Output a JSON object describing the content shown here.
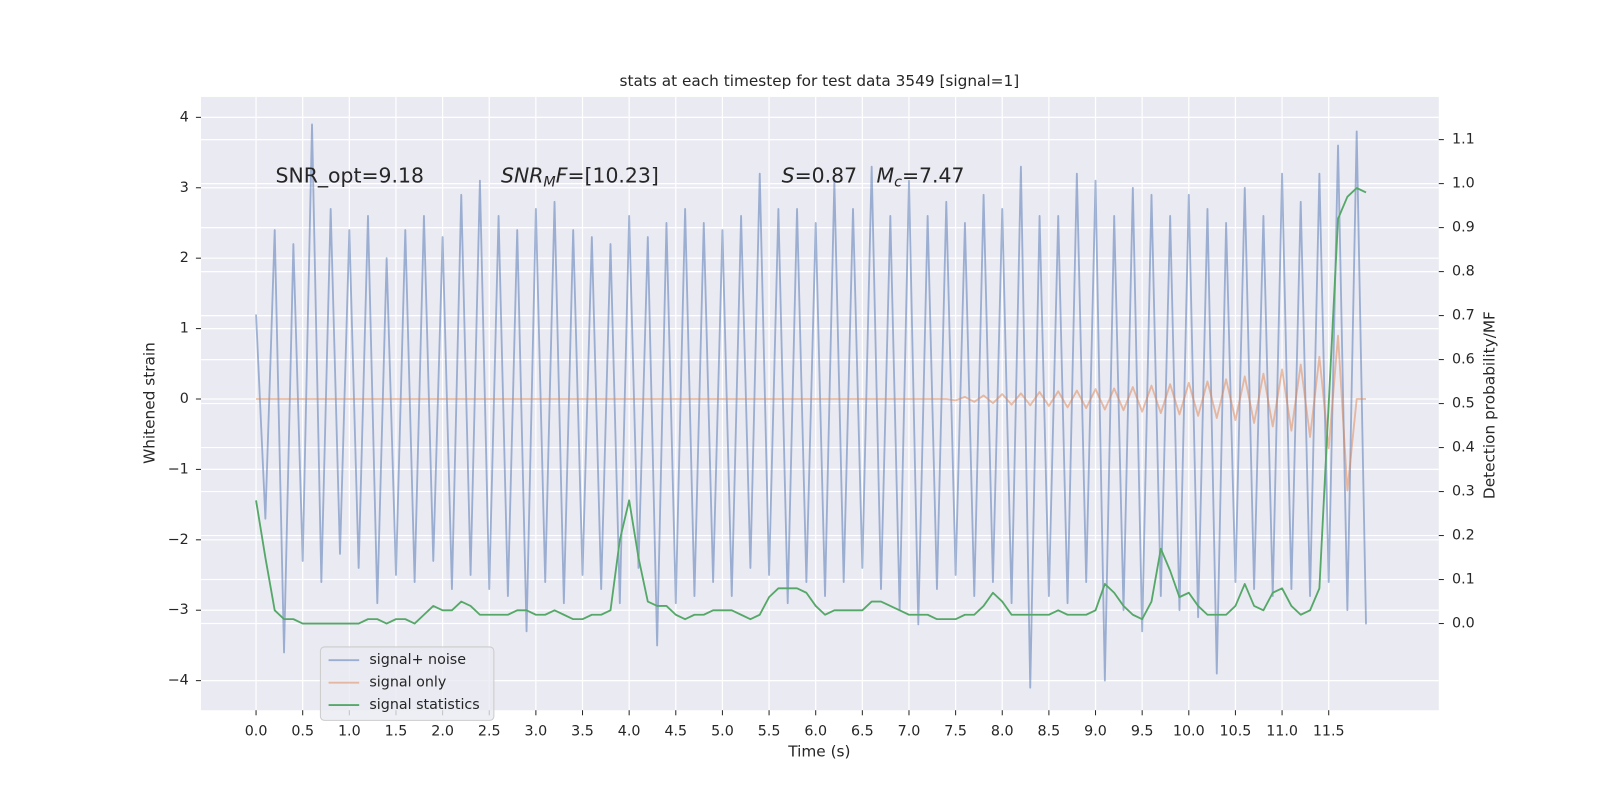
{
  "chart_data": {
    "type": "line",
    "title": "stats at each timestep for test data 3549 [signal=1]",
    "xlabel": "Time (s)",
    "ylabel": "Whitened strain",
    "y2label": "Detection probability/MF",
    "annotations": [
      [
        {
          "t": "SNR_opt=9.18"
        }
      ],
      [
        {
          "t": "SNR",
          "i": true
        },
        {
          "t": "M",
          "i": true,
          "sub": true
        },
        {
          "t": "F",
          "i": true
        },
        {
          "t": "=[10.23]"
        }
      ],
      [
        {
          "t": "S",
          "i": true
        },
        {
          "t": "=0.87   "
        },
        {
          "t": "M",
          "i": true
        },
        {
          "t": "c",
          "i": true,
          "sub": true
        },
        {
          "t": "=7.47"
        }
      ]
    ],
    "x": [
      0.0,
      0.1,
      0.2,
      0.3,
      0.4,
      0.5,
      0.6,
      0.7,
      0.8,
      0.9,
      1.0,
      1.1,
      1.2,
      1.3,
      1.4,
      1.5,
      1.6,
      1.7,
      1.8,
      1.9,
      2.0,
      2.1,
      2.2,
      2.3,
      2.4,
      2.5,
      2.6,
      2.7,
      2.8,
      2.9,
      3.0,
      3.1,
      3.2,
      3.3,
      3.4,
      3.5,
      3.6,
      3.7,
      3.8,
      3.9,
      4.0,
      4.1,
      4.2,
      4.3,
      4.4,
      4.5,
      4.6,
      4.7,
      4.8,
      4.9,
      5.0,
      5.1,
      5.2,
      5.3,
      5.4,
      5.5,
      5.6,
      5.7,
      5.8,
      5.9,
      6.0,
      6.1,
      6.2,
      6.3,
      6.4,
      6.5,
      6.6,
      6.7,
      6.8,
      6.9,
      7.0,
      7.1,
      7.2,
      7.3,
      7.4,
      7.5,
      7.6,
      7.7,
      7.8,
      7.9,
      8.0,
      8.1,
      8.2,
      8.3,
      8.4,
      8.5,
      8.6,
      8.7,
      8.8,
      8.9,
      9.0,
      9.1,
      9.2,
      9.3,
      9.4,
      9.5,
      9.6,
      9.7,
      9.8,
      9.9,
      10.0,
      10.1,
      10.2,
      10.3,
      10.4,
      10.5,
      10.6,
      10.7,
      10.8,
      10.9,
      11.0,
      11.1,
      11.2,
      11.3,
      11.4,
      11.5,
      11.6,
      11.7,
      11.8,
      11.9
    ],
    "series": [
      {
        "name": "signal+ noise",
        "color": "#4c72b0",
        "alpha": 0.5,
        "values": [
          1.2,
          -1.7,
          2.4,
          -3.6,
          2.2,
          -2.3,
          3.9,
          -2.6,
          2.7,
          -2.2,
          2.4,
          -2.4,
          2.6,
          -2.9,
          2.0,
          -2.5,
          2.4,
          -2.6,
          2.6,
          -2.3,
          2.3,
          -2.7,
          2.9,
          -2.5,
          3.1,
          -2.7,
          2.6,
          -2.8,
          2.4,
          -3.3,
          2.7,
          -2.6,
          2.8,
          -2.9,
          2.4,
          -2.5,
          2.3,
          -2.7,
          2.2,
          -2.9,
          2.6,
          -2.4,
          2.3,
          -3.5,
          2.5,
          -2.9,
          2.7,
          -2.8,
          2.5,
          -2.6,
          2.4,
          -2.8,
          2.6,
          -2.4,
          3.2,
          -2.5,
          2.7,
          -2.9,
          2.7,
          -2.6,
          2.5,
          -2.8,
          3.1,
          -2.6,
          2.7,
          -2.4,
          3.3,
          -2.7,
          2.6,
          -3.0,
          3.1,
          -3.2,
          2.6,
          -2.7,
          2.8,
          -2.5,
          2.5,
          -2.8,
          2.9,
          -2.6,
          2.7,
          -2.9,
          3.3,
          -4.1,
          2.6,
          -2.8,
          2.6,
          -2.9,
          3.2,
          -2.6,
          3.1,
          -4.0,
          2.6,
          -3.0,
          3.0,
          -3.3,
          2.9,
          -2.8,
          2.6,
          -3.0,
          2.9,
          -3.1,
          2.7,
          -3.9,
          2.5,
          -2.6,
          3.0,
          -2.7,
          2.6,
          -2.8,
          3.2,
          -2.7,
          2.8,
          -2.8,
          3.2,
          -2.6,
          3.6,
          -3.0,
          3.8,
          -3.2
        ]
      },
      {
        "name": "signal only",
        "color": "#dd8452",
        "alpha": 0.5,
        "values": [
          0,
          0,
          0,
          0,
          0,
          0,
          0,
          0,
          0,
          0,
          0,
          0,
          0,
          0,
          0,
          0,
          0,
          0,
          0,
          0,
          0,
          0,
          0,
          0,
          0,
          0,
          0,
          0,
          0,
          0,
          0,
          0,
          0,
          0,
          0,
          0,
          0,
          0,
          0,
          0,
          0,
          0,
          0,
          0,
          0,
          0,
          0,
          0,
          0,
          0,
          0,
          0,
          0,
          0,
          0,
          0,
          0,
          0,
          0,
          0,
          0,
          0,
          0,
          0,
          0,
          0,
          0,
          0,
          0,
          0,
          0,
          0,
          0,
          0,
          0,
          -0.02,
          0.03,
          -0.04,
          0.05,
          -0.06,
          0.07,
          -0.08,
          0.08,
          -0.09,
          0.1,
          -0.1,
          0.11,
          -0.12,
          0.12,
          -0.13,
          0.14,
          -0.15,
          0.15,
          -0.16,
          0.17,
          -0.18,
          0.19,
          -0.2,
          0.21,
          -0.22,
          0.23,
          -0.24,
          0.25,
          -0.27,
          0.28,
          -0.3,
          0.32,
          -0.34,
          0.36,
          -0.39,
          0.42,
          -0.45,
          0.49,
          -0.54,
          0.6,
          -0.7,
          0.9,
          -1.3,
          0,
          0
        ]
      },
      {
        "name": "signal statistics",
        "color": "#55a868",
        "alpha": 1,
        "axis": "y2",
        "values": [
          0.28,
          0.15,
          0.03,
          0.01,
          0.01,
          0.0,
          0.0,
          0.0,
          0.0,
          0.0,
          0.0,
          0.0,
          0.01,
          0.01,
          0.0,
          0.01,
          0.01,
          0.0,
          0.02,
          0.04,
          0.03,
          0.03,
          0.05,
          0.04,
          0.02,
          0.02,
          0.02,
          0.02,
          0.03,
          0.03,
          0.02,
          0.02,
          0.03,
          0.02,
          0.01,
          0.01,
          0.02,
          0.02,
          0.03,
          0.19,
          0.28,
          0.15,
          0.05,
          0.04,
          0.04,
          0.02,
          0.01,
          0.02,
          0.02,
          0.03,
          0.03,
          0.03,
          0.02,
          0.01,
          0.02,
          0.06,
          0.08,
          0.08,
          0.08,
          0.07,
          0.04,
          0.02,
          0.03,
          0.03,
          0.03,
          0.03,
          0.05,
          0.05,
          0.04,
          0.03,
          0.02,
          0.02,
          0.02,
          0.01,
          0.01,
          0.01,
          0.02,
          0.02,
          0.04,
          0.07,
          0.05,
          0.02,
          0.02,
          0.02,
          0.02,
          0.02,
          0.03,
          0.02,
          0.02,
          0.02,
          0.03,
          0.09,
          0.07,
          0.04,
          0.02,
          0.01,
          0.05,
          0.17,
          0.12,
          0.06,
          0.07,
          0.04,
          0.02,
          0.02,
          0.02,
          0.04,
          0.09,
          0.04,
          0.03,
          0.07,
          0.08,
          0.04,
          0.02,
          0.03,
          0.08,
          0.5,
          0.92,
          0.97,
          0.99,
          0.98
        ]
      }
    ],
    "xlim": [
      -0.59,
      12.68
    ],
    "ylim": [
      -4.42,
      4.29
    ],
    "y2lim": [
      -0.197,
      1.197
    ],
    "xticks": [
      {
        "value": 0,
        "label": "0.0"
      },
      {
        "value": 0.5,
        "label": "0.5"
      },
      {
        "value": 1,
        "label": "1.0"
      },
      {
        "value": 1.5,
        "label": "1.5"
      },
      {
        "value": 2,
        "label": "2.0"
      },
      {
        "value": 2.5,
        "label": "2.5"
      },
      {
        "value": 3,
        "label": "3.0"
      },
      {
        "value": 3.5,
        "label": "3.5"
      },
      {
        "value": 4,
        "label": "4.0"
      },
      {
        "value": 4.5,
        "label": "4.5"
      },
      {
        "value": 5,
        "label": "5.0"
      },
      {
        "value": 5.5,
        "label": "5.5"
      },
      {
        "value": 6,
        "label": "6.0"
      },
      {
        "value": 6.5,
        "label": "6.5"
      },
      {
        "value": 7,
        "label": "7.0"
      },
      {
        "value": 7.5,
        "label": "7.5"
      },
      {
        "value": 8,
        "label": "8.0"
      },
      {
        "value": 8.5,
        "label": "8.5"
      },
      {
        "value": 9,
        "label": "9.0"
      },
      {
        "value": 9.5,
        "label": "9.5"
      },
      {
        "value": 10,
        "label": "10.0"
      },
      {
        "value": 10.5,
        "label": "10.5"
      },
      {
        "value": 11,
        "label": "11.0"
      },
      {
        "value": 11.5,
        "label": "11.5"
      }
    ],
    "yticks": [
      {
        "value": -4,
        "label": "−4"
      },
      {
        "value": -3,
        "label": "−3"
      },
      {
        "value": -2,
        "label": "−2"
      },
      {
        "value": -1,
        "label": "−1"
      },
      0,
      1,
      2,
      3,
      4
    ],
    "y2ticks": [
      {
        "value": 0,
        "label": "0.0"
      },
      {
        "value": 0.1,
        "label": "0.1"
      },
      {
        "value": 0.2,
        "label": "0.2"
      },
      {
        "value": 0.3,
        "label": "0.3"
      },
      {
        "value": 0.4,
        "label": "0.4"
      },
      {
        "value": 0.5,
        "label": "0.5"
      },
      {
        "value": 0.6,
        "label": "0.6"
      },
      {
        "value": 0.7,
        "label": "0.7"
      },
      {
        "value": 0.8,
        "label": "0.8"
      },
      {
        "value": 0.9,
        "label": "0.9"
      },
      {
        "value": 1,
        "label": "1.0"
      },
      {
        "value": 1.1,
        "label": "1.1"
      }
    ],
    "grid": true,
    "legend": "lower left"
  }
}
